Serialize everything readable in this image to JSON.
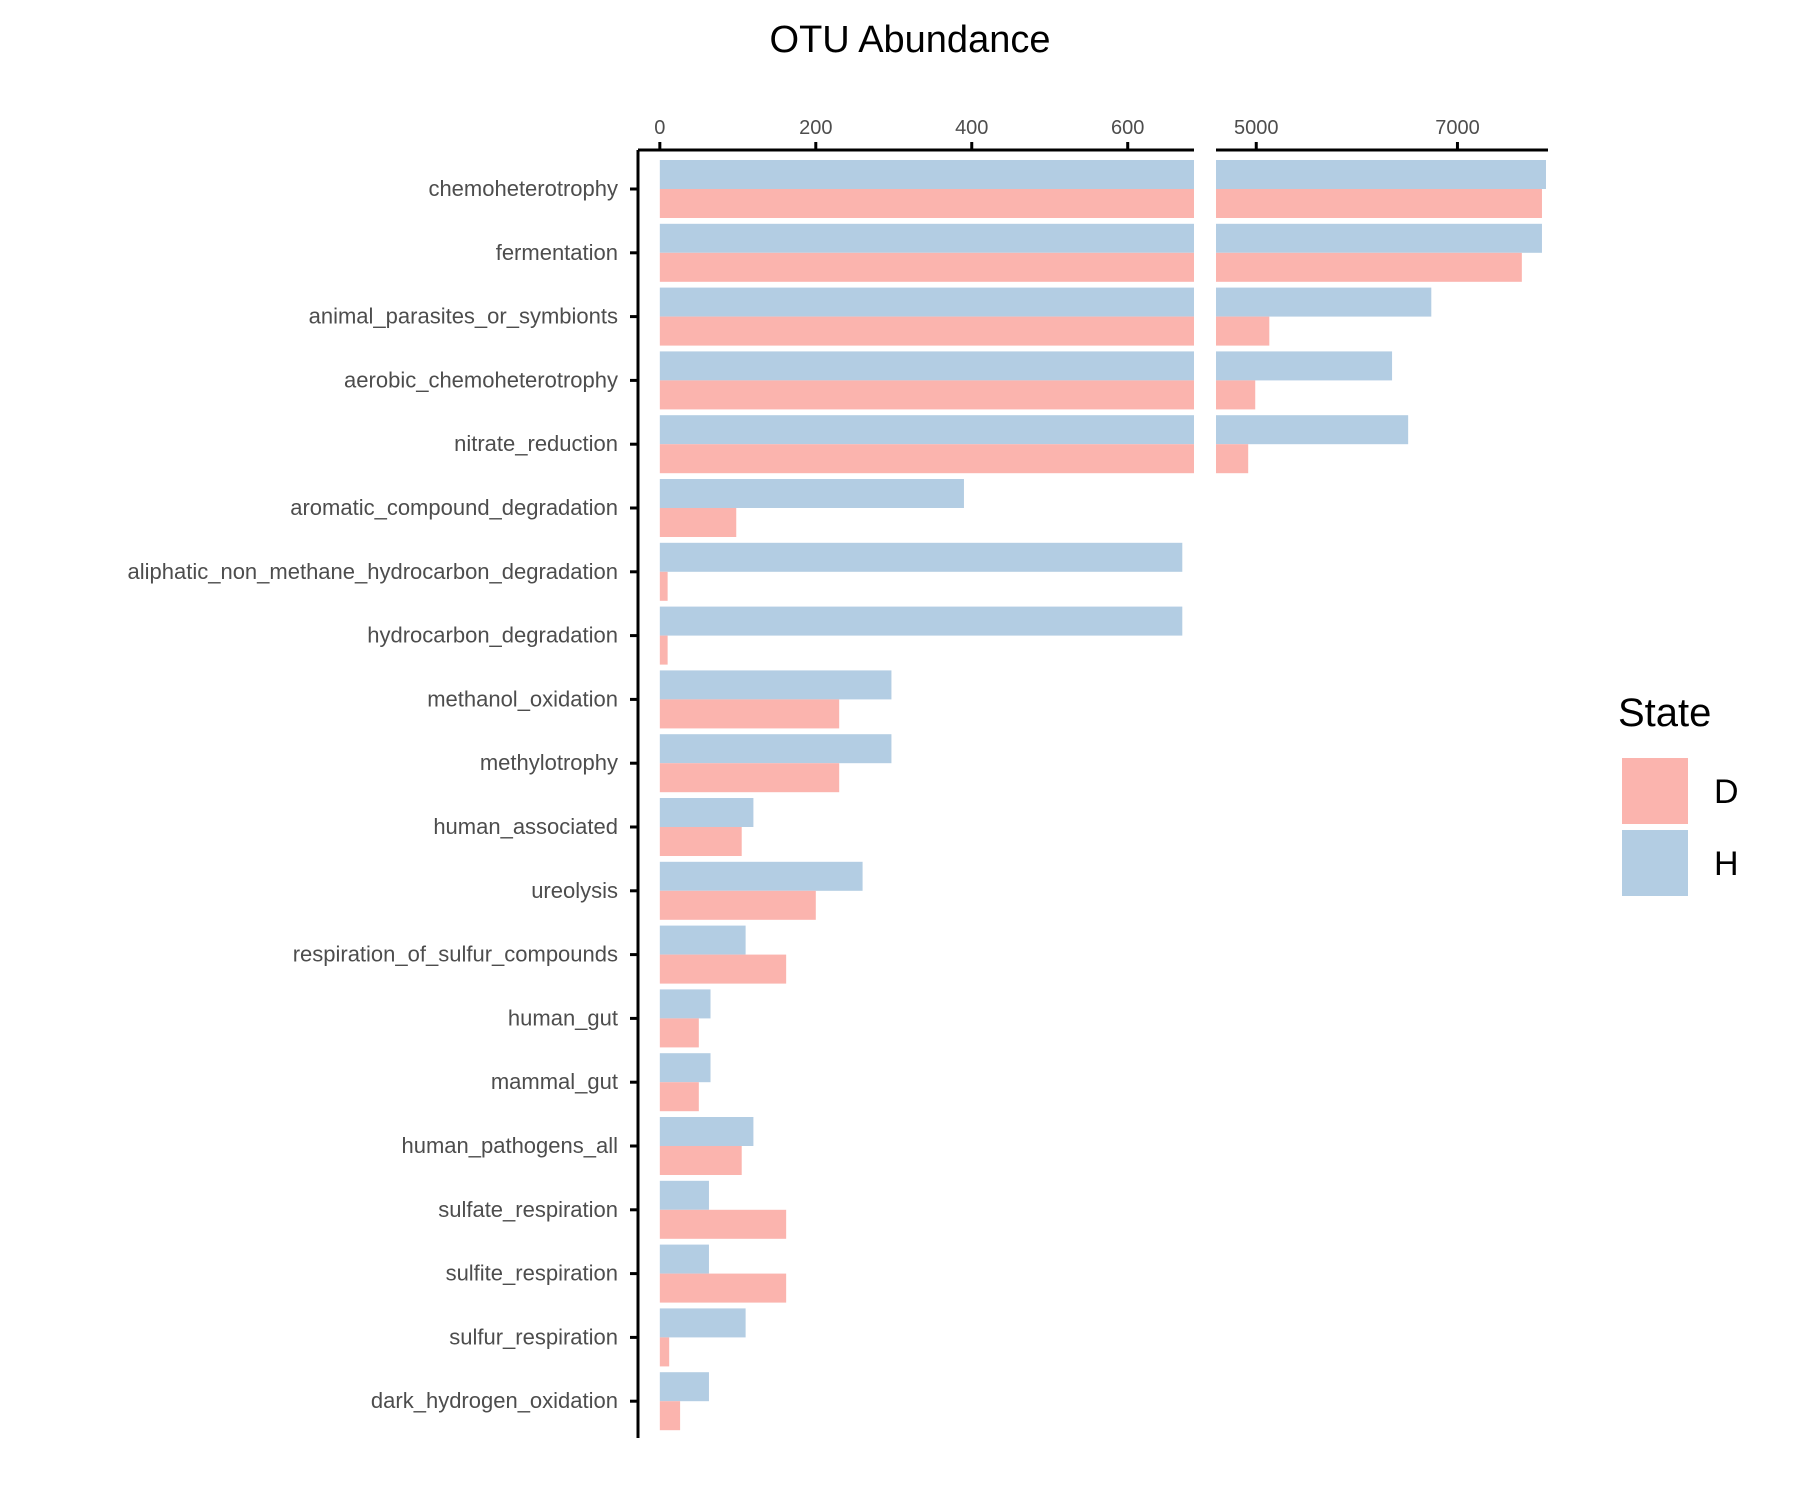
{
  "chart_data": {
    "type": "bar",
    "title": "OTU Abundance",
    "orientation": "horizontal",
    "broken_axis": true,
    "xlabel": "",
    "ylabel": "",
    "panels": [
      {
        "xlim": [
          -28,
          685
        ],
        "ticks": [
          0,
          200,
          400,
          600
        ]
      },
      {
        "xlim": [
          4600,
          7900
        ],
        "ticks": [
          5000,
          7000
        ]
      }
    ],
    "categories": [
      "chemoheterotrophy",
      "fermentation",
      "animal_parasites_or_symbionts",
      "aerobic_chemoheterotrophy",
      "nitrate_reduction",
      "aromatic_compound_degradation",
      "aliphatic_non_methane_hydrocarbon_degradation",
      "hydrocarbon_degradation",
      "methanol_oxidation",
      "methylotrophy",
      "human_associated",
      "ureolysis",
      "respiration_of_sulfur_compounds",
      "human_gut",
      "mammal_gut",
      "human_pathogens_all",
      "sulfate_respiration",
      "sulfite_respiration",
      "sulfur_respiration",
      "dark_hydrogen_oxidation"
    ],
    "series": [
      {
        "name": "H",
        "color": "#b3cde3",
        "values": [
          7880,
          7840,
          6740,
          6350,
          6510,
          390,
          670,
          670,
          297,
          297,
          120,
          260,
          110,
          65,
          65,
          120,
          63,
          63,
          110,
          63
        ]
      },
      {
        "name": "D",
        "color": "#fbb4ae",
        "values": [
          7840,
          7640,
          5130,
          4990,
          4920,
          98,
          10,
          10,
          230,
          230,
          105,
          200,
          162,
          50,
          50,
          105,
          162,
          162,
          12,
          26
        ]
      }
    ],
    "legend": {
      "title": "State",
      "position": "right",
      "entries": [
        "D",
        "H"
      ]
    },
    "grid": false
  }
}
